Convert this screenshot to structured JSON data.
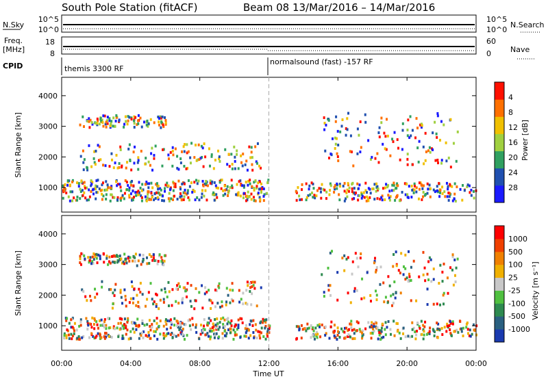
{
  "chart_data": {
    "type": "heatmap",
    "title": "South Pole Station (fitACF)",
    "subtitle": "Beam 08  13/Mar/2016 – 14/Mar/2016",
    "x_label": "Time UT",
    "x_ticks": [
      "00:00",
      "04:00",
      "08:00",
      "12:00",
      "16:00",
      "20:00",
      "00:00"
    ],
    "x_range_hours": [
      0,
      24
    ],
    "cpid_split_hour": 12,
    "top_panels": {
      "nsky": {
        "left_label": "N.Sky",
        "left_ticks": [
          "10^5",
          "10^0"
        ],
        "right_label": "N.Search",
        "right_ticks": [
          "10^5",
          "10^0"
        ]
      },
      "freq": {
        "left_label_line1": "Freq.",
        "left_label_line2": "[MHz]",
        "left_ticks": [
          "18",
          "8"
        ],
        "right_label": "Nave",
        "right_ticks": [
          "60",
          "0"
        ]
      },
      "cpid": {
        "label": "CPID",
        "segments": [
          {
            "start_hour": 0,
            "end_hour": 12,
            "name": "themis 3300 RF"
          },
          {
            "start_hour": 12,
            "end_hour": 24,
            "name": "normalsound (fast) -157 RF"
          }
        ]
      }
    },
    "panels": [
      {
        "name": "Power",
        "y_label": "Slant Range [km]",
        "y_ticks": [
          "1000",
          "2000",
          "3000",
          "4000"
        ],
        "y_range_km": [
          200,
          4600
        ],
        "colorbar_label": "Power [dB]",
        "colorbar_ticks": [
          "4",
          "8",
          "12",
          "16",
          "20",
          "24",
          "28"
        ],
        "colorbar_colors": [
          "#1a1aff",
          "#2050b0",
          "#30a060",
          "#a0d040",
          "#f0c000",
          "#ff7000",
          "#ff1000"
        ]
      },
      {
        "name": "Velocity",
        "y_label": "Slant Range [km]",
        "y_ticks": [
          "1000",
          "2000",
          "3000",
          "4000"
        ],
        "y_range_km": [
          200,
          4600
        ],
        "colorbar_label": "Velocity [m s⁻¹]",
        "colorbar_ticks": [
          "1000",
          "500",
          "100",
          "25",
          "-25",
          "-100",
          "-500",
          "-1000"
        ],
        "colorbar_colors": [
          "#1a3aaf",
          "#2a6080",
          "#2e8a50",
          "#50c040",
          "#c8c8c8",
          "#f0b000",
          "#f08000",
          "#f04000",
          "#ff0000"
        ]
      }
    ]
  }
}
